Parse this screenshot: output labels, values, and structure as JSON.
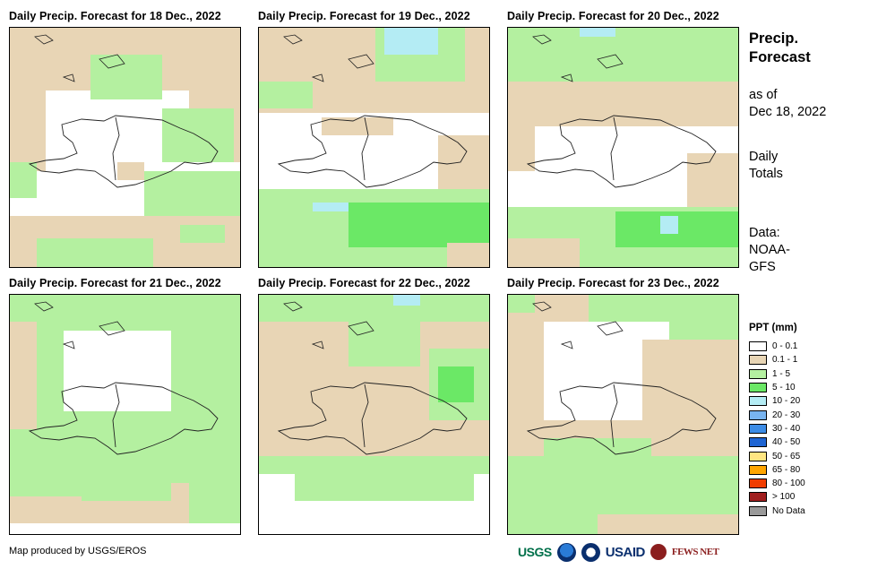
{
  "panels": [
    {
      "title": "Daily Precip. Forecast for 18 Dec., 2022"
    },
    {
      "title": "Daily Precip. Forecast for 19 Dec., 2022"
    },
    {
      "title": "Daily Precip. Forecast for 20 Dec., 2022"
    },
    {
      "title": "Daily Precip. Forecast for 21 Dec., 2022"
    },
    {
      "title": "Daily Precip. Forecast for 22 Dec., 2022"
    },
    {
      "title": "Daily Precip. Forecast for 23 Dec., 2022"
    }
  ],
  "sidebar": {
    "heading_line1": "Precip.",
    "heading_line2": "Forecast",
    "asof_line1": "as of",
    "asof_line2": "Dec 18, 2022",
    "totals_line1": "Daily",
    "totals_line2": "Totals",
    "data_line1": "Data:",
    "data_line2": "NOAA-",
    "data_line3": "GFS"
  },
  "legend": {
    "title": "PPT (mm)",
    "items": [
      {
        "label": "0 - 0.1",
        "color": "#ffffff"
      },
      {
        "label": "0.1 - 1",
        "color": "#e8d5b5"
      },
      {
        "label": "1 - 5",
        "color": "#b4f0a0"
      },
      {
        "label": "5 - 10",
        "color": "#6be866"
      },
      {
        "label": "10 - 20",
        "color": "#b4ecf4"
      },
      {
        "label": "20 - 30",
        "color": "#78b4f0"
      },
      {
        "label": "30 - 40",
        "color": "#3c8ce6"
      },
      {
        "label": "40 - 50",
        "color": "#1e64d2"
      },
      {
        "label": "50 - 65",
        "color": "#ffe682"
      },
      {
        "label": "65 - 80",
        "color": "#ffa500"
      },
      {
        "label": "80 - 100",
        "color": "#f03c00"
      },
      {
        "label": "> 100",
        "color": "#a01e1e"
      },
      {
        "label": "No Data",
        "color": "#999999"
      }
    ]
  },
  "footer": {
    "credit": "Map produced by USGS/EROS",
    "logo_usgs": "USGS",
    "logo_usaid": "USAID",
    "logo_fewsnet": "FEWS NET"
  }
}
